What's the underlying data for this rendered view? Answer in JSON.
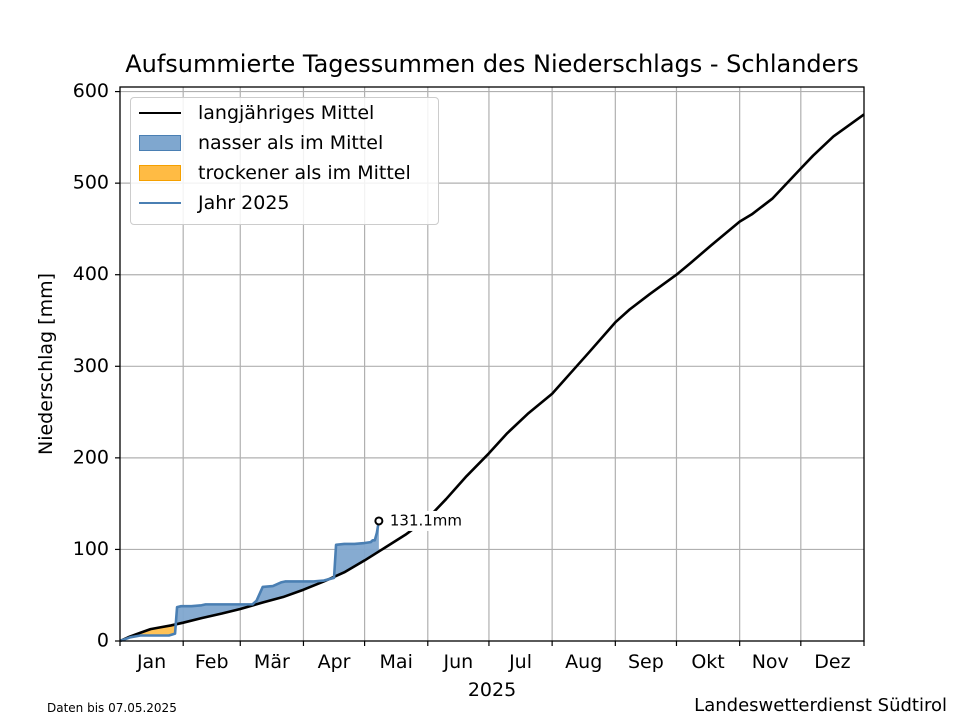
{
  "chart_data": {
    "type": "area",
    "title": "Aufsummierte Tagessummen des Niederschlags - Schlanders",
    "xlabel": "2025",
    "ylabel": "Niederschlag [mm]",
    "xlim": [
      0,
      365
    ],
    "ylim": [
      0,
      605
    ],
    "grid": true,
    "legend_placement": "top-left",
    "month_labels": [
      "Jan",
      "Feb",
      "Mär",
      "Apr",
      "Mai",
      "Jun",
      "Jul",
      "Aug",
      "Sep",
      "Okt",
      "Nov",
      "Dez"
    ],
    "y_ticks": [
      0,
      100,
      200,
      300,
      400,
      500,
      600
    ],
    "legend": {
      "mean": "langjähriges Mittel",
      "wetter": "nasser als im Mittel",
      "drier": "trockener als im Mittel",
      "year": "Jahr 2025"
    },
    "annotation": {
      "day": 127,
      "value": 131.1,
      "text": "131.1mm"
    },
    "series": [
      {
        "name": "langjähriges Mittel",
        "color": "#000000",
        "x": [
          0,
          5,
          10,
          15,
          20,
          25,
          31,
          40,
          50,
          59,
          70,
          80,
          90,
          100,
          110,
          120,
          130,
          140,
          151,
          160,
          170,
          181,
          190,
          200,
          212,
          220,
          230,
          243,
          250,
          260,
          273,
          280,
          290,
          304,
          310,
          320,
          334,
          340,
          350,
          365
        ],
        "values": [
          0,
          5,
          9,
          13,
          15,
          17,
          20,
          25,
          30,
          35,
          42,
          48,
          56,
          65,
          75,
          88,
          102,
          116,
          134,
          155,
          180,
          205,
          227,
          248,
          270,
          290,
          315,
          348,
          362,
          379,
          400,
          413,
          432,
          458,
          466,
          483,
          516,
          530,
          551,
          575
        ]
      },
      {
        "name": "Jahr 2025",
        "color": "#4a7fb3",
        "x": [
          0,
          5,
          10,
          15,
          20,
          24,
          27,
          28,
          30,
          35,
          40,
          42,
          45,
          50,
          55,
          60,
          65,
          67,
          70,
          75,
          79,
          81,
          85,
          90,
          95,
          100,
          105,
          106,
          110,
          115,
          120,
          123,
          124,
          125,
          126,
          127
        ],
        "values": [
          0,
          4,
          6,
          6,
          6,
          6,
          8,
          37,
          38,
          38,
          39,
          40,
          40,
          40,
          40,
          40,
          40,
          44,
          59,
          60,
          64,
          65,
          65,
          65,
          65,
          66,
          69,
          105,
          106,
          106,
          107,
          108,
          110,
          110,
          118,
          131.1
        ]
      }
    ],
    "fill_colors": {
      "wetter": "#7fa7cf",
      "drier": "#ffbb44"
    }
  },
  "footer": {
    "data_note": "Daten bis 07.05.2025",
    "source": "Landeswetterdienst Südtirol"
  }
}
